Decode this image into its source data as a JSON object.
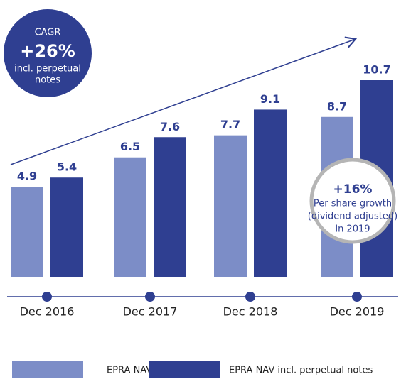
{
  "chart_data": {
    "type": "bar",
    "categories": [
      "Dec 2016",
      "Dec 2017",
      "Dec 2018",
      "Dec 2019"
    ],
    "series": [
      {
        "name": "EPRA NAV",
        "color": "#7c8dc7",
        "values": [
          4.9,
          6.5,
          7.7,
          8.7
        ]
      },
      {
        "name": "EPRA NAV incl. perpetual notes",
        "color": "#2f3f91",
        "values": [
          5.4,
          7.6,
          9.1,
          10.7
        ]
      }
    ],
    "annotations": [
      {
        "lines": [
          "CAGR",
          "+26%",
          "incl. perpetual",
          "notes"
        ]
      },
      {
        "lines": [
          "+16%",
          "Per share growth",
          "(dividend adjusted)",
          "in 2019"
        ]
      }
    ],
    "legend": "bottom"
  }
}
